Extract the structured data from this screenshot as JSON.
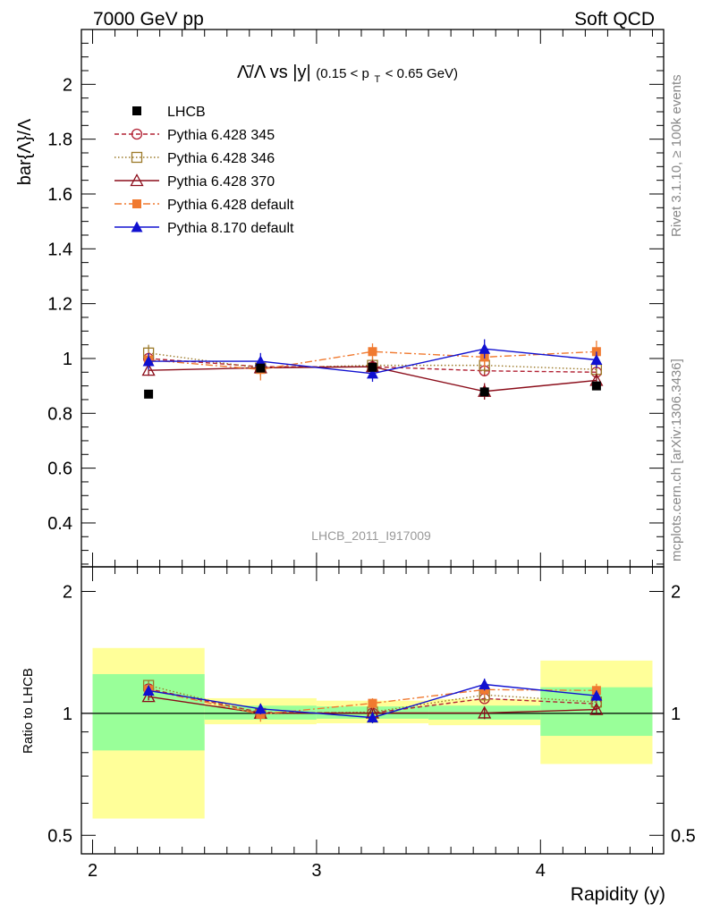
{
  "header": {
    "left": "7000 GeV pp",
    "right": "Soft QCD"
  },
  "side_labels": {
    "rivet": "Rivet 3.1.10, ≥ 100k events",
    "mcplots": "mcplots.cern.ch [arXiv:1306.3436]"
  },
  "chart_data": {
    "type": "scatter",
    "title": {
      "main": "Λ̄/Λ vs |y|",
      "range_prefix": "(0.15 < p",
      "range_sub": "T",
      "range_suffix": " < 0.65 GeV)"
    },
    "analysis_tag": "LHCB_2011_I917009",
    "xlabel": "Rapidity (y)",
    "ylabel": "bar{Λ}/Λ",
    "ratio_ylabel": "Ratio to LHCB",
    "xlim": [
      1.95,
      4.55
    ],
    "ylim": [
      0.24,
      2.2
    ],
    "ratio_ylim": [
      0.45,
      2.3
    ],
    "x_ticks": [
      "2",
      "3",
      "4"
    ],
    "y_ticks": [
      "0.4",
      "0.6",
      "0.8",
      "1",
      "1.2",
      "1.4",
      "1.6",
      "1.8",
      "2"
    ],
    "ratio_ticks": [
      "0.5",
      "1",
      "2"
    ],
    "x_bins": [
      [
        2.0,
        2.5
      ],
      [
        2.5,
        3.0
      ],
      [
        3.0,
        3.5
      ],
      [
        3.5,
        4.0
      ],
      [
        4.0,
        4.5
      ]
    ],
    "x": [
      2.25,
      2.75,
      3.25,
      3.75,
      4.25
    ],
    "legend_position": "top-left",
    "data": {
      "name": "LHCB",
      "color": "#000000",
      "values": [
        0.87,
        0.965,
        0.968,
        0.878,
        0.9
      ],
      "band_green": [
        [
          0.81,
          1.25
        ],
        [
          0.965,
          1.045
        ],
        [
          0.97,
          1.04
        ],
        [
          0.965,
          1.045
        ],
        [
          0.88,
          1.16
        ]
      ],
      "band_yellow": [
        [
          0.55,
          1.45
        ],
        [
          0.94,
          1.09
        ],
        [
          0.945,
          1.075
        ],
        [
          0.935,
          1.085
        ],
        [
          0.75,
          1.35
        ]
      ]
    },
    "series": [
      {
        "name": "Pythia 6.428 345",
        "color": "#b22234",
        "marker": "circle-open",
        "dash": "5,3",
        "values": [
          1.0,
          0.97,
          0.97,
          0.955,
          0.95
        ],
        "errors": [
          0.02,
          0.02,
          0.02,
          0.02,
          0.02
        ]
      },
      {
        "name": "Pythia 6.428 346",
        "color": "#9c7a2a",
        "marker": "square-open",
        "dash": "1.5,2.5",
        "values": [
          1.02,
          0.965,
          0.975,
          0.975,
          0.96
        ],
        "errors": [
          0.03,
          0.03,
          0.03,
          0.03,
          0.03
        ]
      },
      {
        "name": "Pythia 6.428 370",
        "color": "#8b0d1a",
        "marker": "triangle-open",
        "dash": "",
        "values": [
          0.957,
          0.966,
          0.97,
          0.88,
          0.92
        ],
        "errors": [
          0.02,
          0.02,
          0.02,
          0.03,
          0.02
        ]
      },
      {
        "name": "Pythia 6.428 default",
        "color": "#f07a30",
        "marker": "square-filled",
        "dash": "8,3,2,3",
        "values": [
          0.995,
          0.96,
          1.025,
          1.005,
          1.025
        ],
        "errors": [
          0.03,
          0.04,
          0.03,
          0.04,
          0.04
        ]
      },
      {
        "name": "Pythia 8.170 default",
        "color": "#1010d0",
        "marker": "triangle-filled",
        "dash": "",
        "values": [
          0.99,
          0.99,
          0.945,
          1.035,
          0.995
        ],
        "errors": [
          0.03,
          0.03,
          0.03,
          0.035,
          0.03
        ]
      }
    ]
  }
}
